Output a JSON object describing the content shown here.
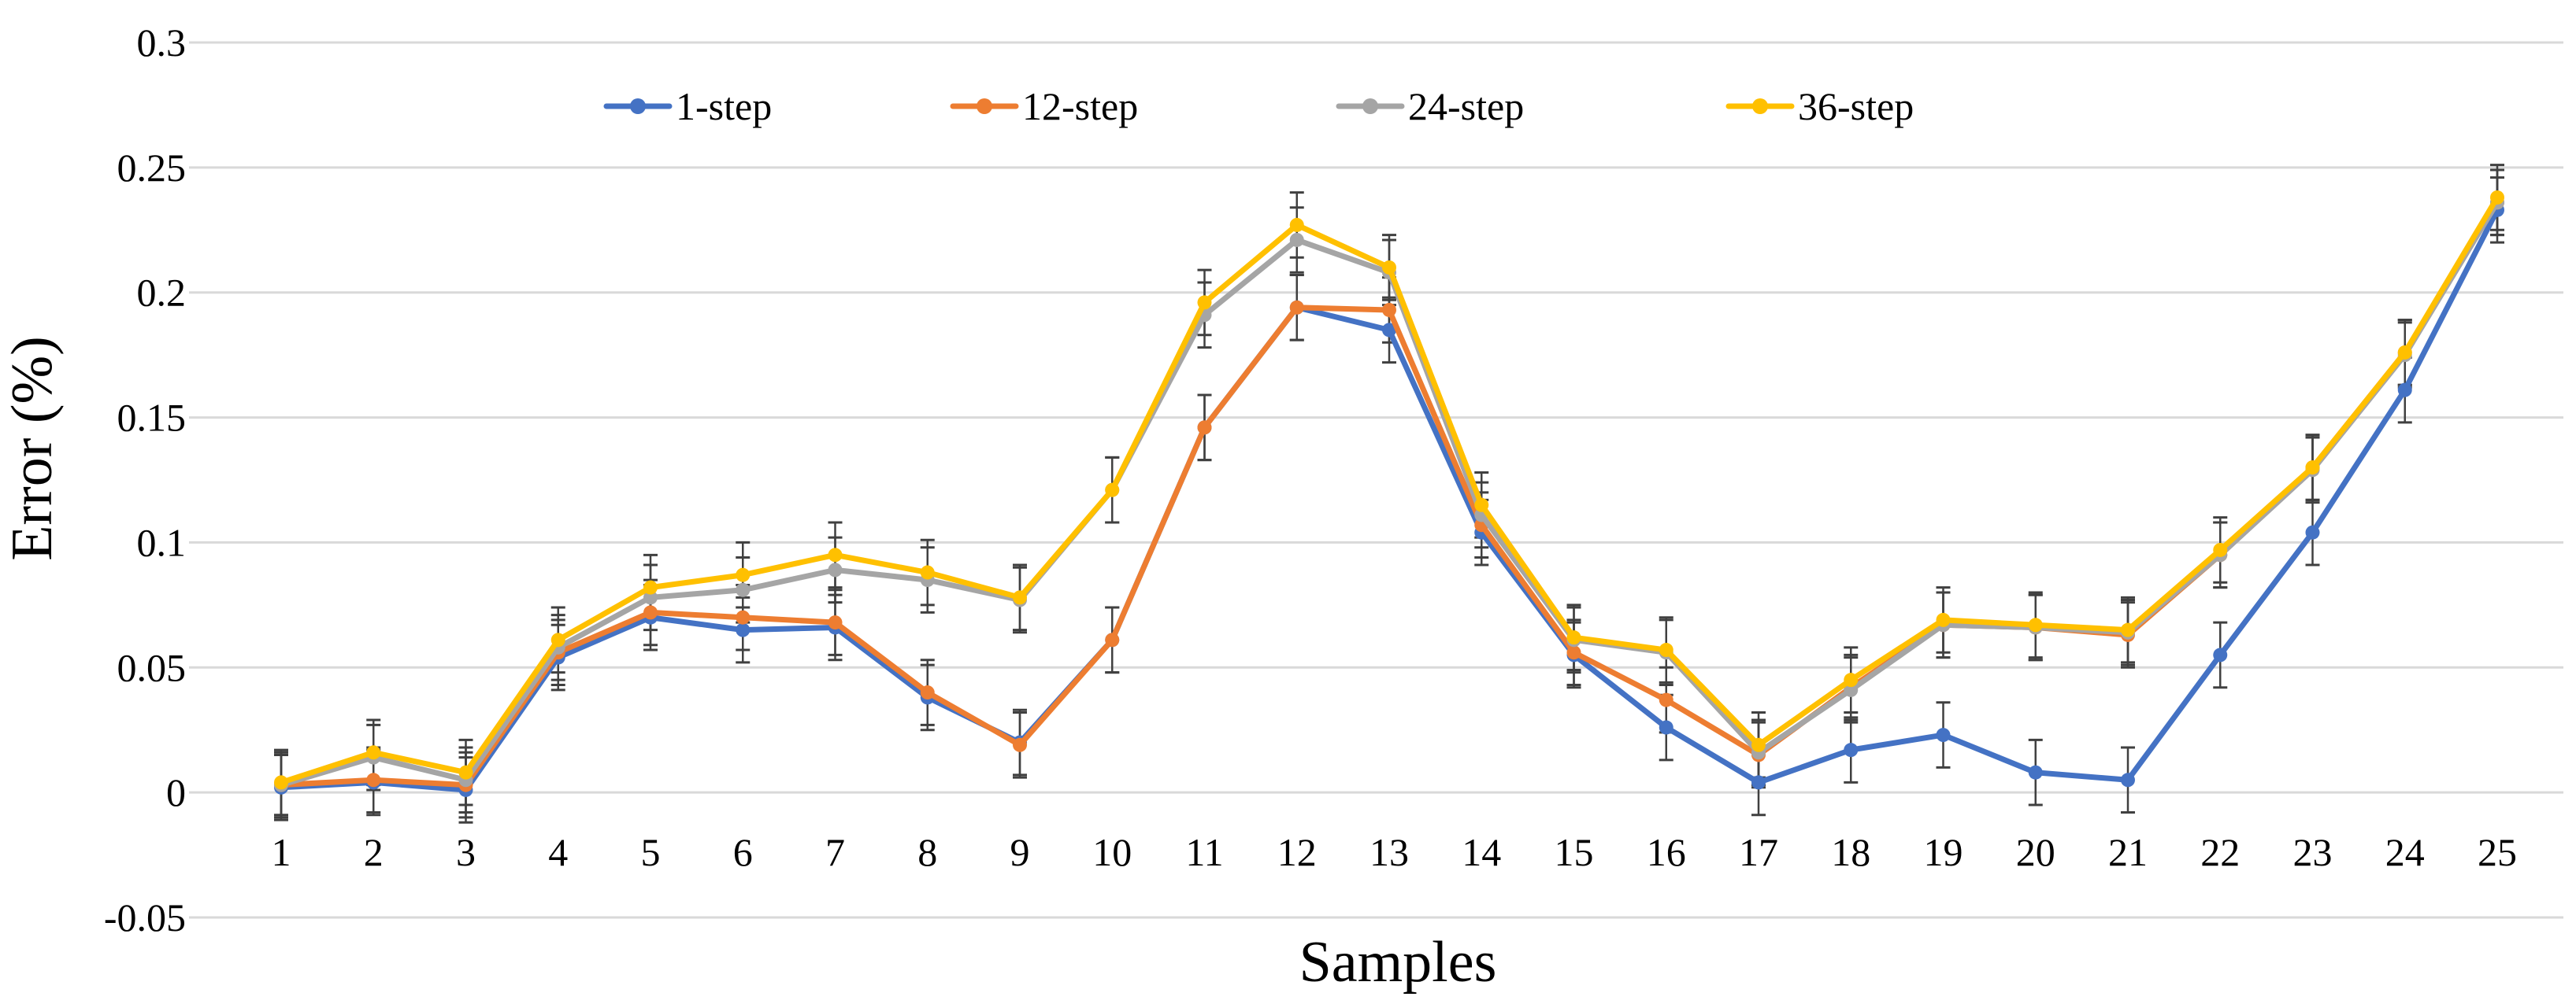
{
  "chart_data": {
    "type": "line",
    "title": "",
    "xlabel": "Samples",
    "ylabel": "Error (%)",
    "ylim": [
      -0.05,
      0.3
    ],
    "yticks": [
      -0.05,
      0,
      0.05,
      0.1,
      0.15,
      0.2,
      0.25,
      0.3
    ],
    "ytick_labels": [
      "-0.05",
      "0",
      "0.05",
      "0.1",
      "0.15",
      "0.2",
      "0.25",
      "0.3"
    ],
    "grid": "horizontal",
    "legend_position": "top",
    "error_bars": true,
    "categories": [
      "1",
      "2",
      "3",
      "4",
      "5",
      "6",
      "7",
      "8",
      "9",
      "10",
      "11",
      "12",
      "13",
      "14",
      "15",
      "16",
      "17",
      "18",
      "19",
      "20",
      "21",
      "22",
      "23",
      "24",
      "25"
    ],
    "series": [
      {
        "name": "1-step",
        "color": "#4472C4",
        "values": [
          0.002,
          0.004,
          0.001,
          0.054,
          0.07,
          0.065,
          0.066,
          0.038,
          0.02,
          0.061,
          0.146,
          0.194,
          0.185,
          0.104,
          0.055,
          0.026,
          0.004,
          0.017,
          0.023,
          0.008,
          0.005,
          0.055,
          0.104,
          0.161,
          0.233
        ],
        "error": [
          0.013,
          0.013,
          0.013,
          0.013,
          0.013,
          0.013,
          0.013,
          0.013,
          0.013,
          0.013,
          0.013,
          0.013,
          0.013,
          0.013,
          0.013,
          0.013,
          0.013,
          0.013,
          0.013,
          0.013,
          0.013,
          0.013,
          0.013,
          0.013,
          0.013
        ]
      },
      {
        "name": "12-step",
        "color": "#ED7D31",
        "values": [
          0.003,
          0.005,
          0.003,
          0.056,
          0.072,
          0.07,
          0.068,
          0.04,
          0.019,
          0.061,
          0.146,
          0.194,
          0.193,
          0.107,
          0.056,
          0.037,
          0.015,
          0.042,
          0.067,
          0.066,
          0.063,
          0.095,
          0.13,
          0.176,
          0.236
        ],
        "error": [
          0.013,
          0.013,
          0.013,
          0.013,
          0.013,
          0.013,
          0.013,
          0.013,
          0.013,
          0.013,
          0.013,
          0.013,
          0.013,
          0.013,
          0.013,
          0.013,
          0.013,
          0.013,
          0.013,
          0.013,
          0.013,
          0.013,
          0.013,
          0.013,
          0.013
        ]
      },
      {
        "name": "24-step",
        "color": "#A5A5A5",
        "values": [
          0.003,
          0.014,
          0.005,
          0.058,
          0.078,
          0.081,
          0.089,
          0.085,
          0.077,
          0.121,
          0.191,
          0.221,
          0.208,
          0.111,
          0.061,
          0.056,
          0.016,
          0.041,
          0.067,
          0.066,
          0.064,
          0.095,
          0.129,
          0.175,
          0.236
        ],
        "error": [
          0.013,
          0.013,
          0.013,
          0.013,
          0.013,
          0.013,
          0.013,
          0.013,
          0.013,
          0.013,
          0.013,
          0.013,
          0.013,
          0.013,
          0.013,
          0.013,
          0.013,
          0.013,
          0.013,
          0.013,
          0.013,
          0.013,
          0.013,
          0.013,
          0.013
        ]
      },
      {
        "name": "36-step",
        "color": "#FFC000",
        "values": [
          0.004,
          0.016,
          0.008,
          0.061,
          0.082,
          0.087,
          0.095,
          0.088,
          0.078,
          0.121,
          0.196,
          0.227,
          0.21,
          0.115,
          0.062,
          0.057,
          0.019,
          0.045,
          0.069,
          0.067,
          0.065,
          0.097,
          0.13,
          0.176,
          0.238
        ],
        "error": [
          0.013,
          0.013,
          0.013,
          0.013,
          0.013,
          0.013,
          0.013,
          0.013,
          0.013,
          0.013,
          0.013,
          0.013,
          0.013,
          0.013,
          0.013,
          0.013,
          0.013,
          0.013,
          0.013,
          0.013,
          0.013,
          0.013,
          0.013,
          0.013,
          0.013
        ]
      }
    ],
    "colors": {
      "grid": "#D9D9D9",
      "error_bar": "#404040",
      "text": "#000000"
    }
  }
}
